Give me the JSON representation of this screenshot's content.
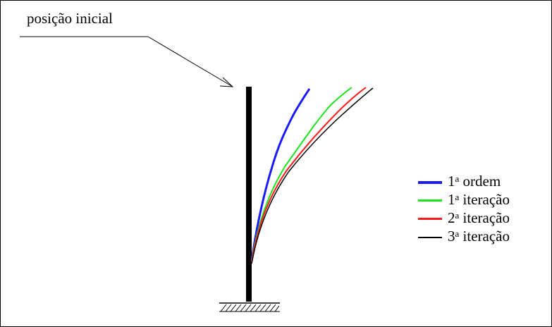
{
  "title": "posição inicial",
  "legend": [
    {
      "num": "1",
      "sup": "a",
      "text": "ordem",
      "color": "#1a1aff"
    },
    {
      "num": "1",
      "sup": "a",
      "text": "iteração",
      "color": "#19e619"
    },
    {
      "num": "2",
      "sup": "a",
      "text": "iteração",
      "color": "#ff1a1a"
    },
    {
      "num": "3",
      "sup": "a",
      "text": "iteração",
      "color": "#000000"
    }
  ],
  "colors": {
    "first_order": "#1a1aff",
    "iter1": "#19e619",
    "iter2": "#ff1a1a",
    "iter3": "#000000",
    "column": "#000000"
  }
}
